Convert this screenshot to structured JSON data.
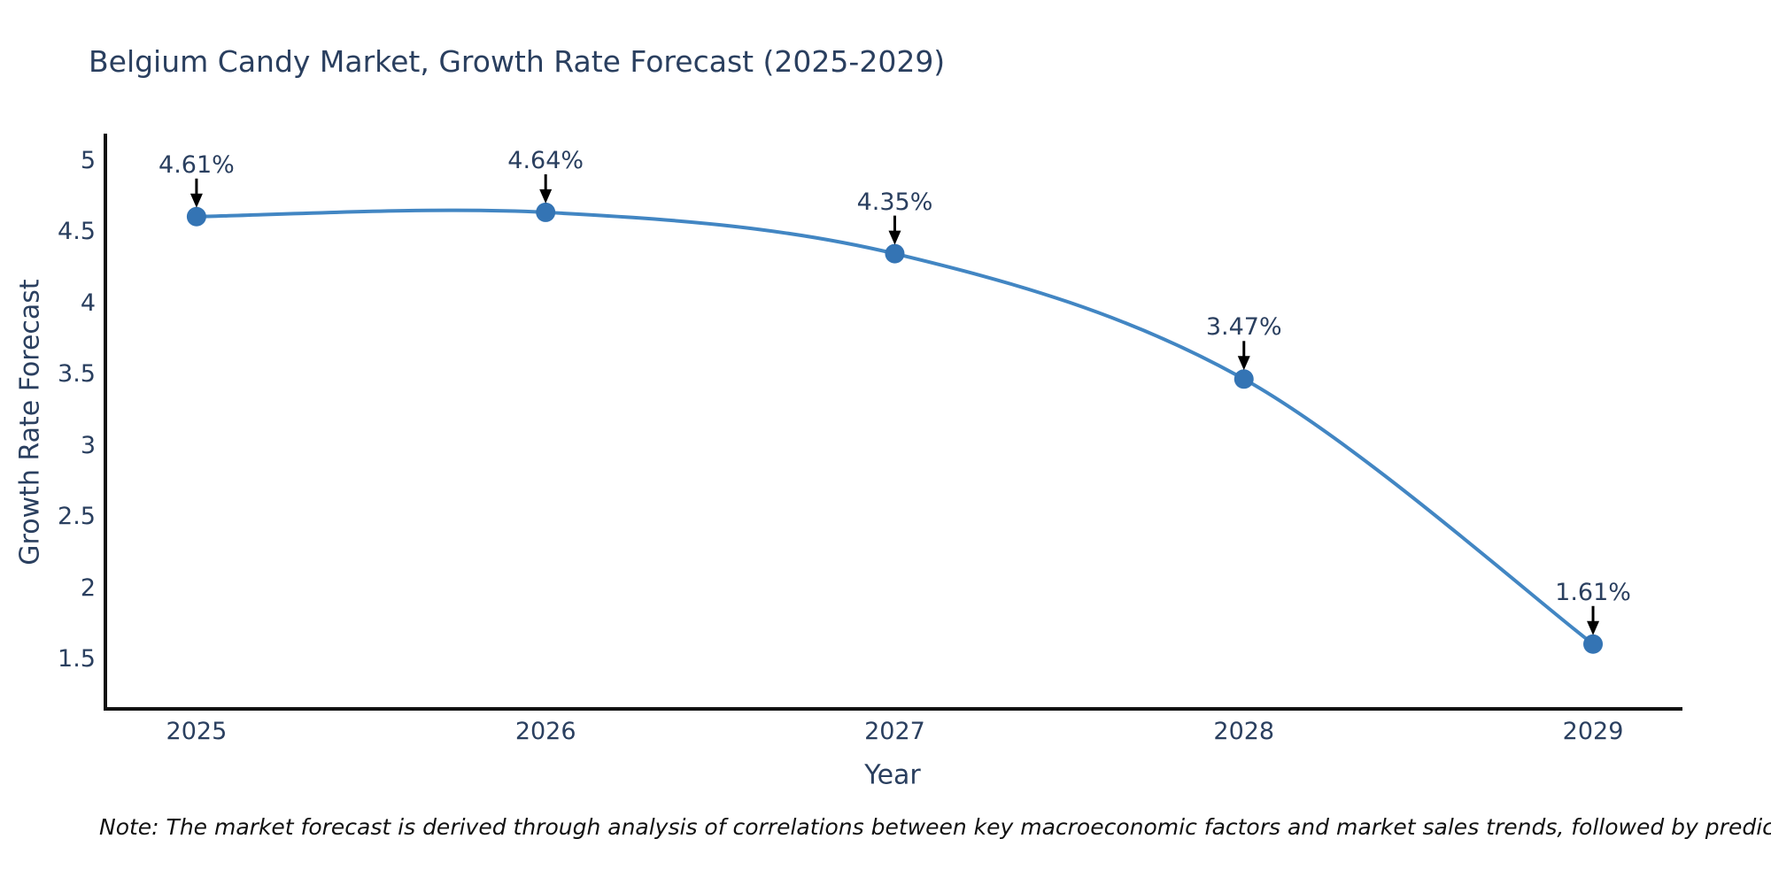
{
  "chart": {
    "title": "Belgium Candy Market, Growth Rate Forecast (2025-2029)",
    "xlabel": "Year",
    "ylabel": "Growth Rate Forecast",
    "note": "Note: The market forecast is derived through analysis of correlations between key macroeconomic factors and market sales trends, followed by predictive modeling to project future sales"
  },
  "chart_data": {
    "type": "line",
    "line_shape": "spline",
    "title": "Belgium Candy Market, Growth Rate Forecast (2025-2029)",
    "xlabel": "Year",
    "ylabel": "Growth Rate Forecast",
    "x": [
      2025,
      2026,
      2027,
      2028,
      2029
    ],
    "values": [
      4.61,
      4.64,
      4.35,
      3.47,
      1.61
    ],
    "point_labels": [
      "4.61%",
      "4.64%",
      "4.35%",
      "3.47%",
      "1.61%"
    ],
    "x_ticks": [
      2025,
      2026,
      2027,
      2028,
      2029
    ],
    "y_ticks": [
      5,
      4.5,
      4,
      3.5,
      3,
      2.5,
      2,
      1.5
    ],
    "xlim": [
      2024.739,
      2029.251
    ],
    "ylim": [
      1.155,
      5.18
    ],
    "grid": false,
    "legend": "none",
    "annotations_have_arrows": true,
    "colors": {
      "line": "#4286c3",
      "marker": "#3474b4",
      "arrow": "#000000",
      "axis_line": "#111111",
      "text": "#2a3f5f",
      "note_text": "#111111",
      "background": "#ffffff"
    }
  }
}
